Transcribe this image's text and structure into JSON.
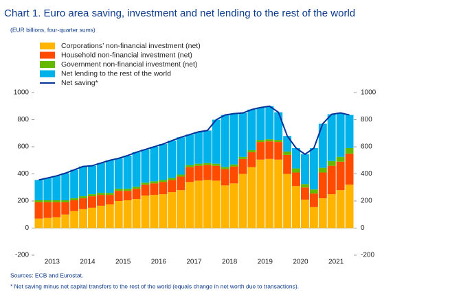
{
  "chart_data": {
    "type": "stacked_bar_line",
    "title": "Chart 1. Euro area saving, investment and net lending to the rest of the world",
    "subtitle": "(EUR billions, four-quarter sums)",
    "categories": [
      "2013",
      null,
      null,
      null,
      "2014",
      null,
      null,
      null,
      "2015",
      null,
      null,
      null,
      "2016",
      null,
      null,
      null,
      "2017",
      null,
      null,
      null,
      "2018",
      null,
      null,
      null,
      "2019",
      null,
      null,
      null,
      "2020",
      null,
      null,
      null,
      "2021",
      null,
      null,
      null
    ],
    "series": [
      {
        "name": "Corporations’ non-financial investment (net)",
        "color": "#ffb400",
        "values": [
          70,
          75,
          80,
          100,
          125,
          140,
          150,
          165,
          175,
          200,
          205,
          215,
          240,
          245,
          250,
          265,
          280,
          340,
          350,
          355,
          350,
          315,
          330,
          400,
          450,
          505,
          510,
          505,
          400,
          310,
          210,
          155,
          220,
          250,
          280,
          320
        ]
      },
      {
        "name": "Household non-financial investment (net)",
        "color": "#ff4b00",
        "values": [
          120,
          115,
          110,
          90,
          80,
          80,
          85,
          80,
          70,
          75,
          70,
          75,
          80,
          85,
          90,
          90,
          100,
          110,
          110,
          110,
          110,
          120,
          125,
          110,
          110,
          130,
          130,
          130,
          140,
          100,
          90,
          100,
          190,
          210,
          210,
          230
        ]
      },
      {
        "name": "Government non-financial investment (net)",
        "color": "#65b800",
        "values": [
          15,
          15,
          15,
          15,
          15,
          15,
          15,
          15,
          15,
          15,
          15,
          15,
          15,
          15,
          15,
          15,
          15,
          15,
          15,
          15,
          15,
          15,
          15,
          15,
          15,
          15,
          15,
          15,
          25,
          30,
          25,
          30,
          35,
          35,
          35,
          40
        ]
      },
      {
        "name": "Net lending to the rest of the world",
        "color": "#00b1ea",
        "values": [
          150,
          165,
          180,
          200,
          210,
          220,
          210,
          220,
          240,
          225,
          245,
          255,
          245,
          255,
          265,
          275,
          275,
          225,
          235,
          240,
          325,
          385,
          375,
          325,
          300,
          240,
          245,
          205,
          115,
          150,
          220,
          305,
          325,
          345,
          325,
          245
        ]
      },
      {
        "name": "Net saving*",
        "color": "#003299",
        "type": "line",
        "values": [
          355,
          370,
          385,
          405,
          430,
          455,
          460,
          480,
          500,
          515,
          535,
          560,
          580,
          600,
          620,
          645,
          670,
          690,
          710,
          720,
          800,
          835,
          845,
          850,
          875,
          890,
          900,
          855,
          680,
          590,
          545,
          590,
          770,
          840,
          850,
          835
        ]
      }
    ],
    "ylim": [
      -200,
      1000
    ],
    "yticks": [
      -200,
      0,
      200,
      400,
      600,
      800,
      1000
    ],
    "y2lim": [
      -200,
      1000
    ],
    "y2ticks": [
      -200,
      0,
      200,
      400,
      600,
      800,
      1000
    ],
    "sources": "Sources: ECB and Eurostat.",
    "note": "* Net saving minus net capital transfers to the rest of the world (equals change in net worth due to transactions)."
  }
}
